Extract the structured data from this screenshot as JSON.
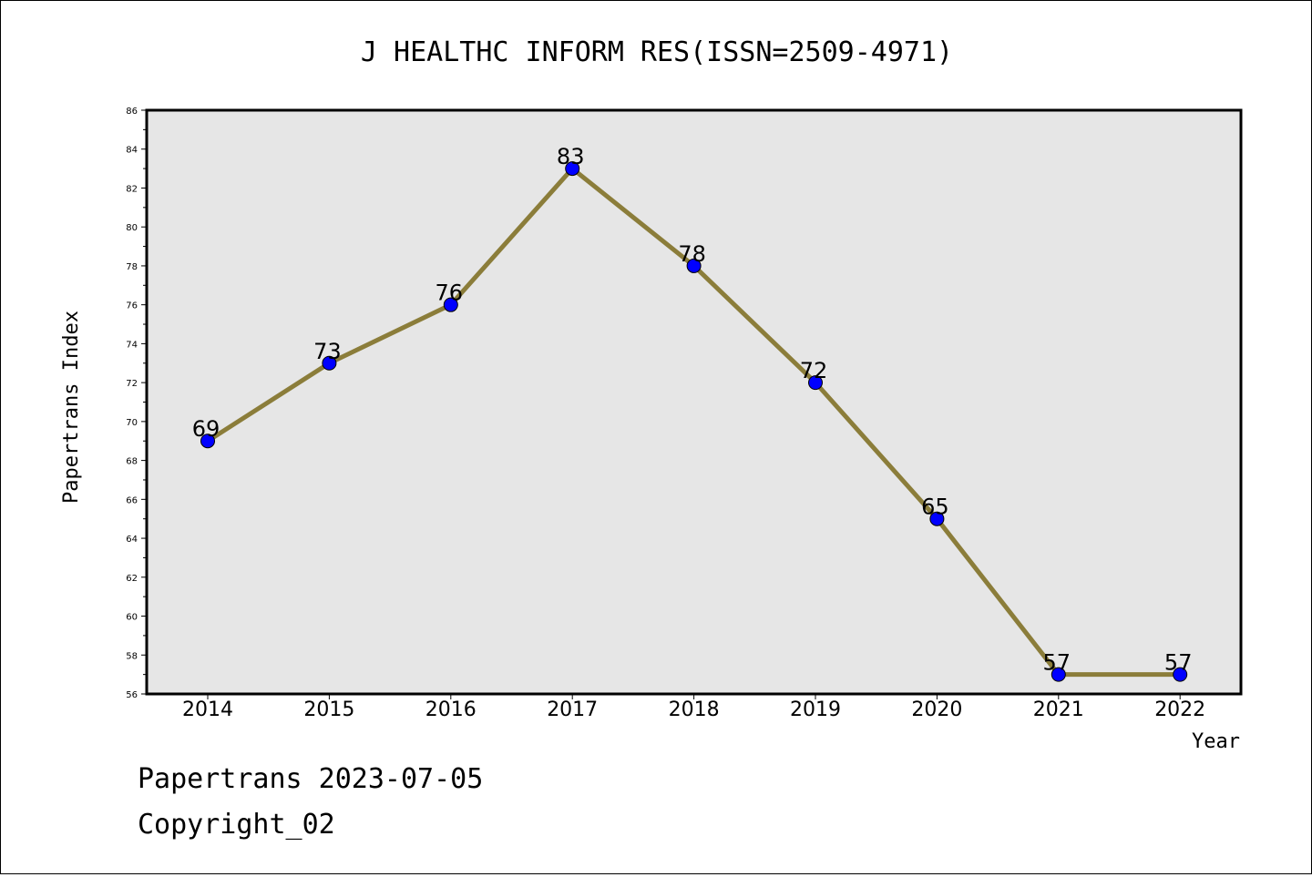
{
  "chart_data": {
    "type": "line",
    "title": "J HEALTHC INFORM RES(ISSN=2509-4971)",
    "xlabel": "Year",
    "ylabel": "Papertrans Index",
    "categories": [
      "2014",
      "2015",
      "2016",
      "2017",
      "2018",
      "2019",
      "2020",
      "2021",
      "2022"
    ],
    "series": [
      {
        "values": [
          69,
          73,
          76,
          83,
          78,
          72,
          65,
          57,
          57
        ]
      }
    ],
    "ylim": [
      56,
      86
    ],
    "yticks": [
      56,
      58,
      60,
      62,
      64,
      66,
      68,
      70,
      72,
      74,
      76,
      78,
      80,
      82,
      84,
      86
    ],
    "grid": false,
    "legend": "none",
    "colors": {
      "line": "#8B7D3A",
      "marker": "#0000FF",
      "plot_background": "#E6E6E6"
    }
  },
  "footer": {
    "date_line": "Papertrans 2023-07-05",
    "copyright": "Copyright_02"
  }
}
